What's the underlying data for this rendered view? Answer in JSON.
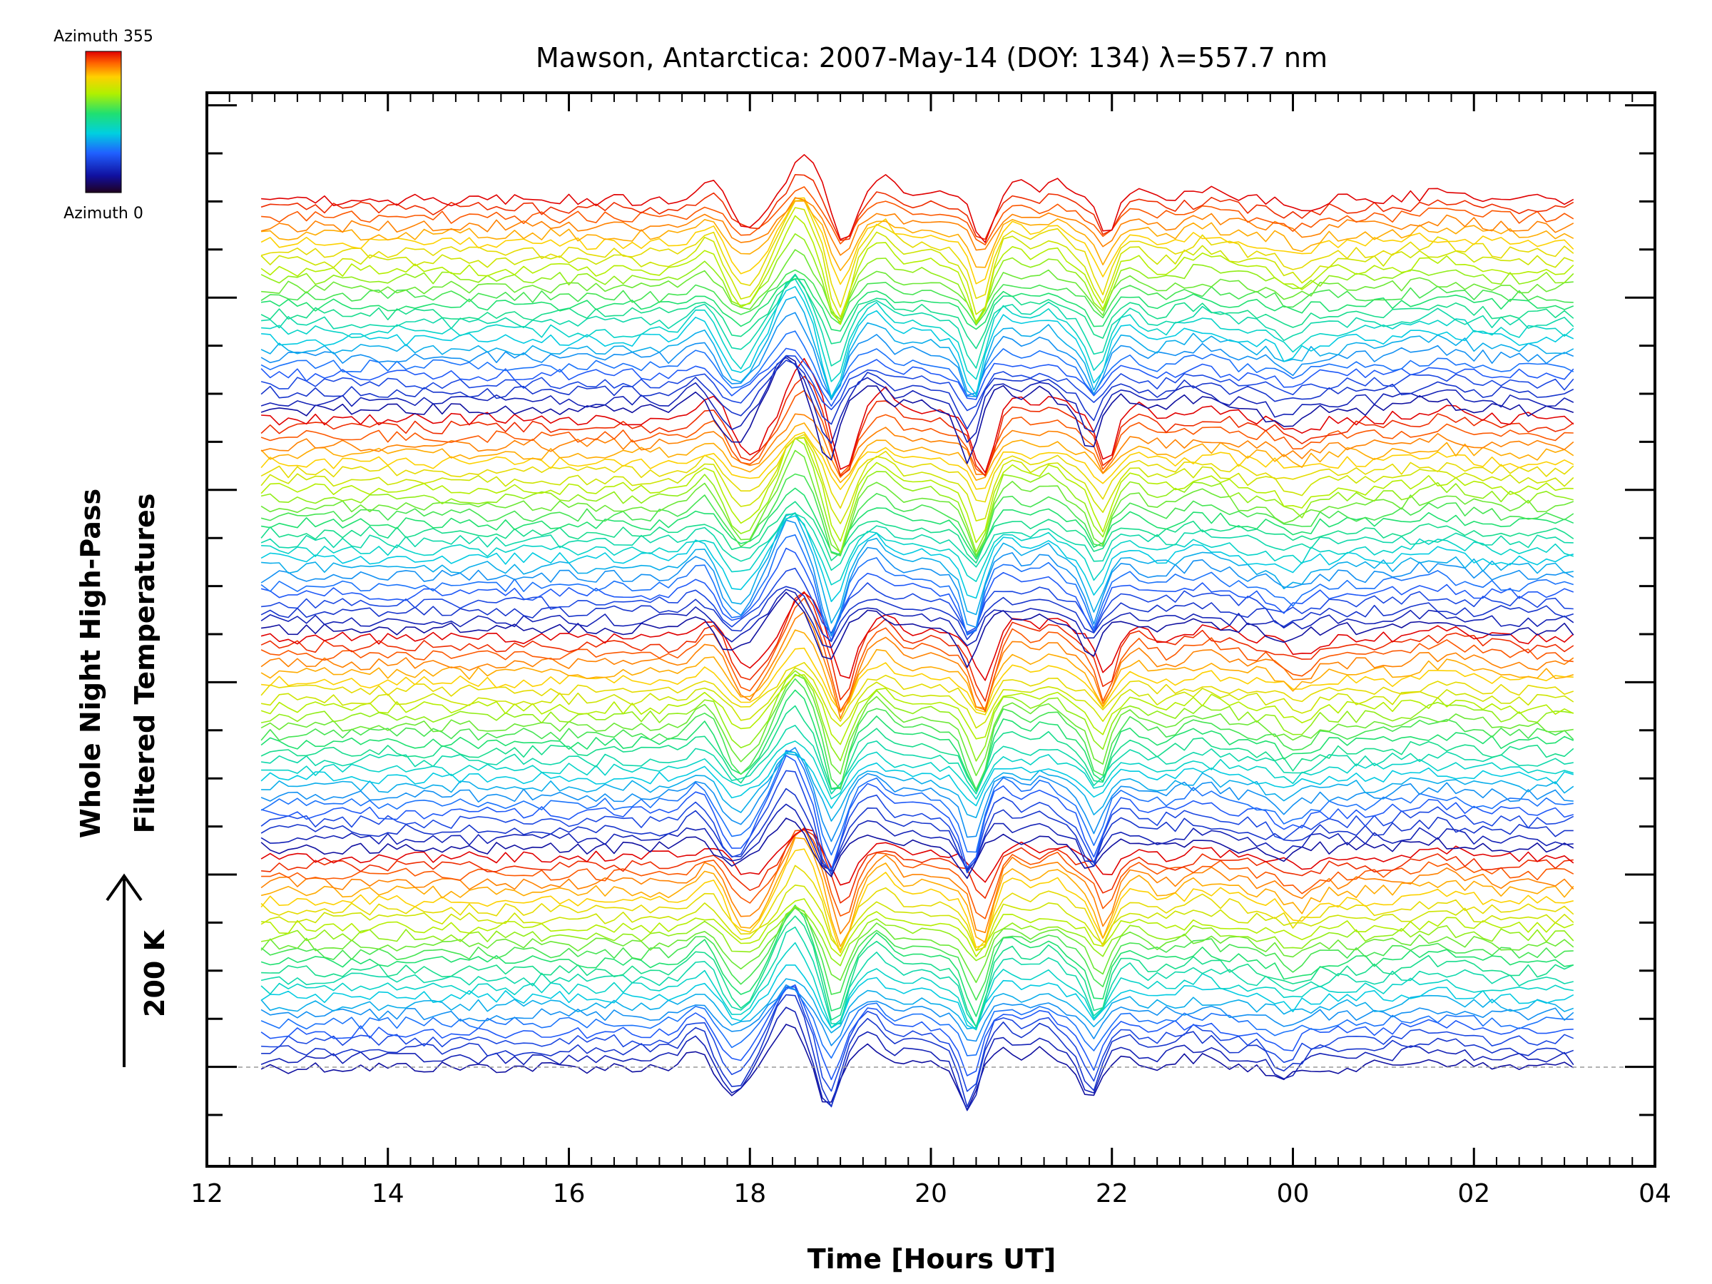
{
  "chart_data": {
    "type": "line",
    "title": "Mawson, Antarctica: 2007-May-14 (DOY: 134) λ=557.7 nm",
    "xlabel": "Time [Hours UT]",
    "ylabel_line1": "Whole Night High-Pass",
    "ylabel_line2": "Filtered Temperatures",
    "scale_label": "200 K",
    "x_tick_labels": [
      "12",
      "14",
      "16",
      "18",
      "20",
      "22",
      "00",
      "02",
      "04"
    ],
    "x_tick_hours": [
      12,
      14,
      16,
      18,
      20,
      22,
      24,
      26,
      28
    ],
    "xlim": [
      12,
      28
    ],
    "x_start": 12.6,
    "x_end": 27.1,
    "colorbar": {
      "top_label": "Azimuth 355",
      "bottom_label": "Azimuth 0",
      "azimuth_range": [
        0,
        355
      ]
    },
    "series_count": 100,
    "series_note": "Stacked high-pass filtered temperature traces, one per azimuth, offset vertically; color encodes azimuth (0 to 355).",
    "common_features_hours": [
      {
        "hour": 17.5,
        "type": "peak"
      },
      {
        "hour": 17.9,
        "type": "dip"
      },
      {
        "hour": 18.5,
        "type": "peak"
      },
      {
        "hour": 18.95,
        "type": "dip"
      },
      {
        "hour": 19.4,
        "type": "peak"
      },
      {
        "hour": 20.5,
        "type": "dip"
      },
      {
        "hour": 21.3,
        "type": "peak"
      },
      {
        "hour": 21.85,
        "type": "dip"
      },
      {
        "hour": 23.0,
        "type": "peak"
      },
      {
        "hour": 24.0,
        "type": "dip"
      },
      {
        "hour": 25.6,
        "type": "peak"
      }
    ]
  }
}
